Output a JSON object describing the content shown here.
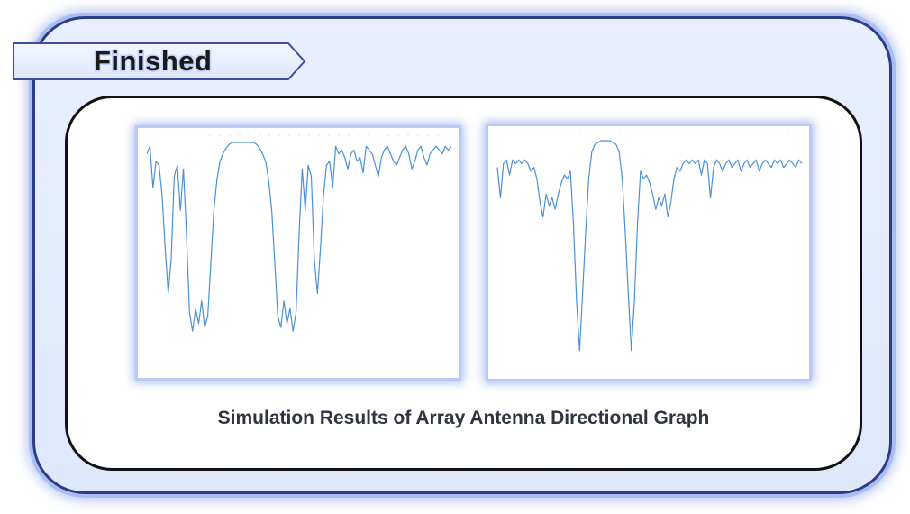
{
  "header": {
    "title": "Finished"
  },
  "caption": "Simulation Results of Array Antenna Directional Graph",
  "colors": {
    "accent_blue": "#5b8fd3",
    "panel_border": "#2c3d86",
    "panel_fill": "#e9efff",
    "plot_glow": "#7f9ee6",
    "line_color": "#4a90d9"
  },
  "chart_data": [
    {
      "type": "line",
      "title": "",
      "xlabel": "",
      "ylabel": "",
      "xlim": [
        0,
        100
      ],
      "ylim": [
        -60,
        0
      ],
      "series": [
        {
          "x": [
            0,
            1,
            2,
            3,
            4,
            5,
            6,
            7,
            8,
            9,
            10,
            11,
            12,
            13,
            14,
            15,
            16,
            17,
            18,
            19,
            20,
            21,
            22,
            23,
            24,
            25,
            26,
            27,
            28,
            29,
            30,
            31,
            32,
            33,
            34,
            35,
            36,
            37,
            38,
            39,
            40,
            41,
            42,
            43,
            44,
            45,
            46,
            47,
            48,
            49,
            50,
            51,
            52,
            53,
            54,
            55,
            56,
            57,
            58,
            59,
            60,
            61,
            62,
            63,
            64,
            65,
            66,
            67,
            68,
            69,
            70,
            71,
            72,
            73,
            74,
            75,
            76,
            77,
            78,
            79,
            80,
            81,
            82,
            83,
            84,
            85,
            86,
            87,
            88,
            89,
            90,
            91,
            92,
            93,
            94,
            95,
            96,
            97,
            98,
            99,
            100
          ],
          "values": [
            -3,
            -1,
            -12,
            -5,
            -6,
            -14,
            -28,
            -40,
            -31,
            -9,
            -6,
            -18,
            -7,
            -24,
            -45,
            -50,
            -44,
            -48,
            -42,
            -49,
            -46,
            -32,
            -18,
            -10,
            -5,
            -3,
            -1.5,
            -0.5,
            0,
            0,
            0,
            0,
            0,
            0,
            0,
            0,
            -0.5,
            -1.5,
            -3,
            -5,
            -10,
            -18,
            -32,
            -46,
            -49,
            -42,
            -48,
            -44,
            -50,
            -45,
            -24,
            -7,
            -18,
            -6,
            -9,
            -31,
            -40,
            -28,
            -14,
            -6,
            -5,
            -12,
            -1,
            -3,
            -2,
            -4,
            -7,
            -3,
            -2,
            -5,
            -4,
            -8,
            -1,
            -2,
            -3,
            -6,
            -9,
            -4,
            -2,
            -1,
            -3,
            -5,
            -6,
            -4,
            -2,
            -1,
            -3,
            -7,
            -5,
            -2,
            -1,
            -4,
            -6,
            -3,
            -2,
            -1,
            -2,
            -3,
            -1,
            -2,
            -1
          ]
        }
      ]
    },
    {
      "type": "line",
      "title": "",
      "xlabel": "",
      "ylabel": "",
      "xlim": [
        0,
        100
      ],
      "ylim": [
        -60,
        0
      ],
      "series": [
        {
          "x": [
            0,
            1,
            2,
            3,
            4,
            5,
            6,
            7,
            8,
            9,
            10,
            11,
            12,
            13,
            14,
            15,
            16,
            17,
            18,
            19,
            20,
            21,
            22,
            23,
            24,
            25,
            26,
            27,
            28,
            29,
            30,
            31,
            32,
            33,
            34,
            35,
            36,
            37,
            38,
            39,
            40,
            41,
            42,
            43,
            44,
            45,
            46,
            47,
            48,
            49,
            50,
            51,
            52,
            53,
            54,
            55,
            56,
            57,
            58,
            59,
            60,
            61,
            62,
            63,
            64,
            65,
            66,
            67,
            68,
            69,
            70,
            71,
            72,
            73,
            74,
            75,
            76,
            77,
            78,
            79,
            80,
            81,
            82,
            83,
            84,
            85,
            86,
            87,
            88,
            89,
            90,
            91,
            92,
            93,
            94,
            95,
            96,
            97,
            98,
            99,
            100
          ],
          "values": [
            -7,
            -15,
            -6,
            -5,
            -9,
            -5,
            -6,
            -5,
            -6,
            -5,
            -6,
            -8,
            -7,
            -10,
            -16,
            -20,
            -14,
            -17,
            -15,
            -18,
            -14,
            -11,
            -9,
            -10,
            -8,
            -22,
            -42,
            -55,
            -40,
            -24,
            -10,
            -3,
            -1,
            -0.5,
            0,
            0,
            0,
            0,
            -0.5,
            -1,
            -3,
            -10,
            -24,
            -40,
            -55,
            -42,
            -22,
            -8,
            -10,
            -9,
            -11,
            -14,
            -18,
            -15,
            -17,
            -14,
            -20,
            -16,
            -10,
            -7,
            -8,
            -6,
            -5,
            -6,
            -5,
            -6,
            -5,
            -9,
            -5,
            -6,
            -15,
            -7,
            -5,
            -6,
            -8,
            -6,
            -5,
            -7,
            -6,
            -5,
            -8,
            -6,
            -5,
            -7,
            -6,
            -5,
            -8,
            -6,
            -5,
            -6,
            -7,
            -5,
            -6,
            -5,
            -7,
            -6,
            -5,
            -6,
            -7,
            -5,
            -6
          ]
        }
      ]
    }
  ]
}
